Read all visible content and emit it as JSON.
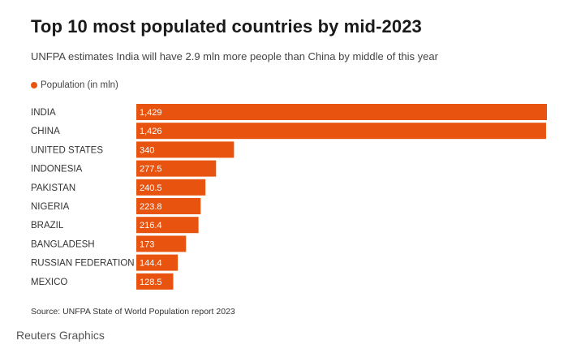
{
  "title": "Top 10 most populated countries by mid-2023",
  "subtitle": "UNFPA estimates India will have 2.9 mln more people than China by middle of this year",
  "legend_label": "Population (in mln)",
  "source": "Source: UNFPA State of World Population report 2023",
  "credit": "Reuters Graphics",
  "colors": {
    "bar": "#e8540f",
    "bar_label": "#ffffff",
    "category": "#333333"
  },
  "chart_data": {
    "type": "bar",
    "orientation": "horizontal",
    "categories": [
      "INDIA",
      "CHINA",
      "UNITED STATES",
      "INDONESIA",
      "PAKISTAN",
      "NIGERIA",
      "BRAZIL",
      "BANGLADESH",
      "RUSSIAN FEDERATION",
      "MEXICO"
    ],
    "series": [
      {
        "name": "Population (in mln)",
        "values": [
          1429,
          1426,
          340,
          277.5,
          240.5,
          223.8,
          216.4,
          173,
          144.4,
          128.5
        ],
        "labels": [
          "1,429",
          "1,426",
          "340",
          "277.5",
          "240.5",
          "223.8",
          "216.4",
          "173",
          "144.4",
          "128.5"
        ]
      }
    ],
    "xlim": [
      0,
      1429
    ],
    "legend": "top-left",
    "grid": false
  }
}
